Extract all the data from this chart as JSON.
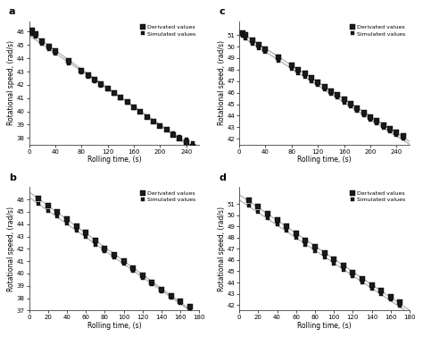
{
  "subplots": [
    {
      "label": "a",
      "xlim": [
        0,
        260
      ],
      "ylim": [
        37.5,
        46.8
      ],
      "xticks": [
        0,
        40,
        80,
        120,
        160,
        200,
        240
      ],
      "yticks": [
        38,
        39,
        40,
        41,
        42,
        43,
        44,
        45,
        46
      ],
      "xlabel": "Rolling time, (s)",
      "ylabel": "Rotational speed, (rad/s)",
      "deriv_x": [
        5,
        10,
        20,
        30,
        40,
        60,
        80,
        90,
        100,
        110,
        120,
        130,
        140,
        150,
        160,
        170,
        180,
        190,
        200,
        210,
        220,
        230,
        240,
        250
      ],
      "deriv_y": [
        46.1,
        45.85,
        45.3,
        44.9,
        44.55,
        43.8,
        43.1,
        42.75,
        42.4,
        42.05,
        41.7,
        41.4,
        41.05,
        40.7,
        40.3,
        40.0,
        39.6,
        39.25,
        38.9,
        38.6,
        38.25,
        37.95,
        37.65,
        37.35
      ],
      "simul_x": [
        5,
        10,
        20,
        30,
        40,
        60,
        80,
        90,
        100,
        110,
        120,
        130,
        140,
        150,
        160,
        170,
        180,
        190,
        200,
        210,
        220,
        230,
        240,
        250
      ],
      "simul_y": [
        45.85,
        45.6,
        45.1,
        44.7,
        44.35,
        43.6,
        42.95,
        42.6,
        42.25,
        41.95,
        41.65,
        41.35,
        41.0,
        40.65,
        40.25,
        39.95,
        39.6,
        39.25,
        38.9,
        38.65,
        38.35,
        38.1,
        37.85,
        37.6
      ]
    },
    {
      "label": "b",
      "xlim": [
        0,
        180
      ],
      "ylim": [
        37.0,
        47.0
      ],
      "xticks": [
        0,
        20,
        40,
        60,
        80,
        100,
        120,
        140,
        160,
        180
      ],
      "yticks": [
        37,
        38,
        39,
        40,
        41,
        42,
        43,
        44,
        45,
        46
      ],
      "xlabel": "Rolling time, (s)",
      "ylabel": "Rotational speed, (rad/s)",
      "deriv_x": [
        10,
        20,
        30,
        40,
        50,
        60,
        70,
        80,
        90,
        100,
        110,
        120,
        130,
        140,
        150,
        160,
        170
      ],
      "deriv_y": [
        46.1,
        45.5,
        45.0,
        44.4,
        43.85,
        43.3,
        42.65,
        42.05,
        41.5,
        41.0,
        40.45,
        39.85,
        39.3,
        38.7,
        38.2,
        37.75,
        37.3
      ],
      "simul_x": [
        10,
        20,
        30,
        40,
        50,
        60,
        70,
        80,
        90,
        100,
        110,
        120,
        130,
        140,
        150,
        160,
        170
      ],
      "simul_y": [
        45.65,
        45.1,
        44.6,
        44.05,
        43.5,
        42.95,
        42.35,
        41.8,
        41.3,
        40.8,
        40.25,
        39.65,
        39.1,
        38.55,
        38.05,
        37.6,
        37.1
      ]
    },
    {
      "label": "c",
      "xlim": [
        0,
        260
      ],
      "ylim": [
        41.5,
        52.2
      ],
      "xticks": [
        0,
        40,
        80,
        120,
        160,
        200,
        240
      ],
      "yticks": [
        42,
        43,
        44,
        45,
        46,
        47,
        48,
        49,
        50,
        51
      ],
      "xlabel": "Rolling time, (s)",
      "ylabel": "Rotational speed, (rad/s)",
      "deriv_x": [
        5,
        10,
        20,
        30,
        40,
        60,
        80,
        90,
        100,
        110,
        120,
        130,
        140,
        150,
        160,
        170,
        180,
        190,
        200,
        210,
        220,
        230,
        240,
        250
      ],
      "deriv_y": [
        51.2,
        51.0,
        50.55,
        50.15,
        49.8,
        49.05,
        48.35,
        48.0,
        47.65,
        47.3,
        46.9,
        46.55,
        46.15,
        45.8,
        45.4,
        45.05,
        44.65,
        44.3,
        43.9,
        43.55,
        43.2,
        42.85,
        42.55,
        42.25
      ],
      "simul_x": [
        5,
        10,
        20,
        30,
        40,
        60,
        80,
        90,
        100,
        110,
        120,
        130,
        140,
        150,
        160,
        170,
        180,
        190,
        200,
        210,
        220,
        230,
        240,
        250
      ],
      "simul_y": [
        50.9,
        50.7,
        50.25,
        49.85,
        49.5,
        48.75,
        48.05,
        47.7,
        47.35,
        47.0,
        46.65,
        46.3,
        45.9,
        45.55,
        45.15,
        44.8,
        44.4,
        44.05,
        43.65,
        43.3,
        42.95,
        42.6,
        42.3,
        42.0
      ]
    },
    {
      "label": "d",
      "xlim": [
        0,
        180
      ],
      "ylim": [
        41.5,
        52.5
      ],
      "xticks": [
        0,
        20,
        40,
        60,
        80,
        100,
        120,
        140,
        160,
        180
      ],
      "yticks": [
        42,
        43,
        44,
        45,
        46,
        47,
        48,
        49,
        50,
        51
      ],
      "xlabel": "Rolling time, (s)",
      "ylabel": "Rotational speed, (rad/s)",
      "deriv_x": [
        10,
        20,
        30,
        40,
        50,
        60,
        70,
        80,
        90,
        100,
        110,
        120,
        130,
        140,
        150,
        160,
        170
      ],
      "deriv_y": [
        51.3,
        50.75,
        50.15,
        49.55,
        49.0,
        48.4,
        47.75,
        47.15,
        46.6,
        46.05,
        45.5,
        44.9,
        44.35,
        43.8,
        43.25,
        42.75,
        42.25
      ],
      "simul_x": [
        10,
        20,
        30,
        40,
        50,
        60,
        70,
        80,
        90,
        100,
        110,
        120,
        130,
        140,
        150,
        160,
        170
      ],
      "simul_y": [
        50.85,
        50.3,
        49.7,
        49.15,
        48.6,
        47.95,
        47.35,
        46.8,
        46.25,
        45.7,
        45.15,
        44.55,
        44.0,
        43.45,
        42.95,
        42.45,
        41.95
      ]
    }
  ],
  "legend_labels": [
    "Derivated values",
    "Simulated values"
  ],
  "color_deriv": "#1a1a1a",
  "color_simul": "#1a1a1a",
  "markersize_deriv": 4.0,
  "markersize_simul": 2.5,
  "line_color": "#b0b0b0",
  "bg_color": "#ffffff"
}
